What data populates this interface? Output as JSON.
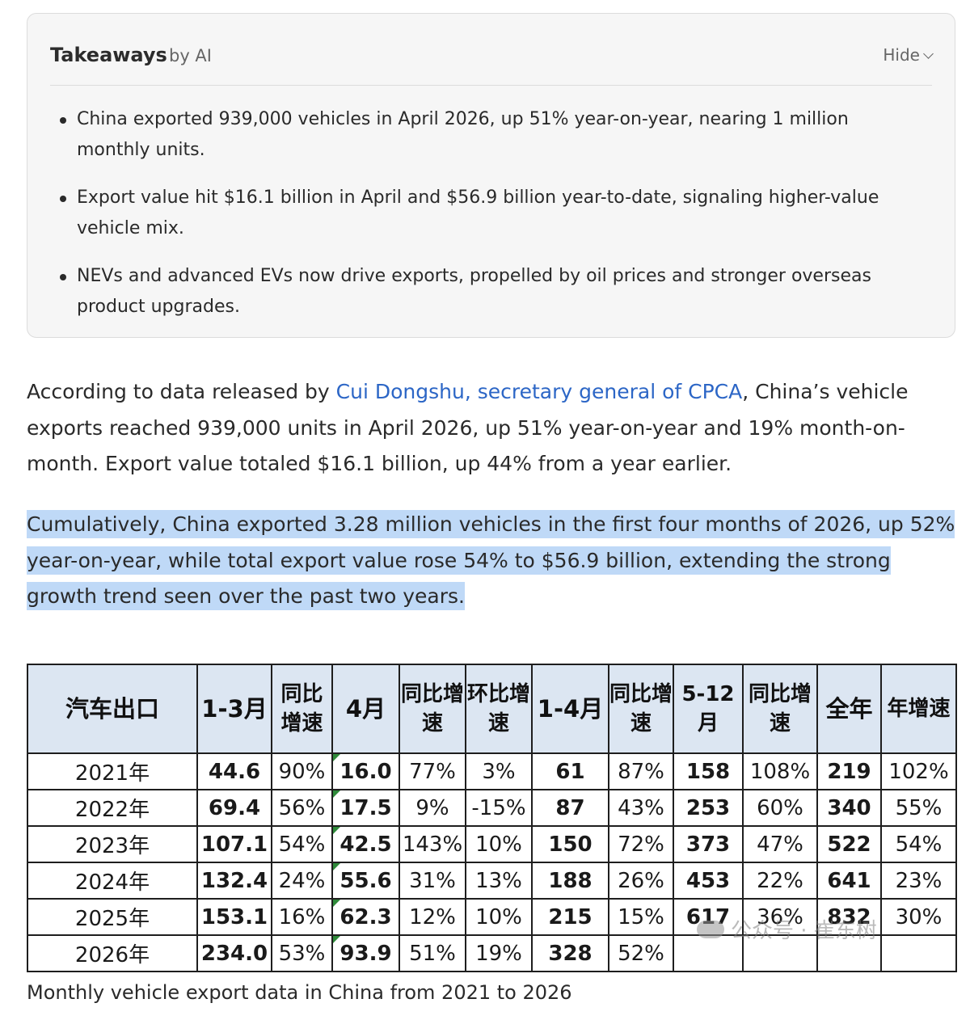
{
  "takeaways": {
    "title": "Takeaways",
    "by": "by AI",
    "hide_label": "Hide",
    "items": [
      "China exported 939,000 vehicles in April 2026, up 51% year-on-year, nearing 1 million monthly units.",
      "Export value hit $16.1 billion in April and $56.9 billion year-to-date, signaling higher-value vehicle mix.",
      "NEVs and advanced EVs now drive exports, propelled by oil prices and stronger overseas product upgrades."
    ]
  },
  "article": {
    "p1_prefix": "According to data released by ",
    "p1_link": "Cui Dongshu, secretary general of CPCA",
    "p1_suffix": ", China’s vehicle exports reached 939,000 units in April 2026, up 51% year-on-year and 19% month-on-month. Export value totaled $16.1 billion, up 44% from a year earlier.",
    "p2": "Cumulatively, China exported 3.28 million vehicles in the first four months of 2026, up 52% year-on-year, while total export value rose 54% to $56.9 billion, extending the strong growth trend seen over the past two years."
  },
  "table": {
    "headers": [
      "汽车出口",
      "1-3月",
      "同比增速",
      "4月",
      "同比增速",
      "环比增速",
      "1-4月",
      "同比增速",
      "5-12月",
      "同比增速",
      "全年",
      "年增速"
    ],
    "rows": [
      [
        "2021年",
        "44.6",
        "90%",
        "16.0",
        "77%",
        "3%",
        "61",
        "87%",
        "158",
        "108%",
        "219",
        "102%"
      ],
      [
        "2022年",
        "69.4",
        "56%",
        "17.5",
        "9%",
        "-15%",
        "87",
        "43%",
        "253",
        "60%",
        "340",
        "55%"
      ],
      [
        "2023年",
        "107.1",
        "54%",
        "42.5",
        "143%",
        "10%",
        "150",
        "72%",
        "373",
        "47%",
        "522",
        "54%"
      ],
      [
        "2024年",
        "132.4",
        "24%",
        "55.6",
        "31%",
        "13%",
        "188",
        "26%",
        "453",
        "22%",
        "641",
        "23%"
      ],
      [
        "2025年",
        "153.1",
        "16%",
        "62.3",
        "12%",
        "10%",
        "215",
        "15%",
        "617",
        "36%",
        "832",
        "30%"
      ],
      [
        "2026年",
        "234.0",
        "53%",
        "93.9",
        "51%",
        "19%",
        "328",
        "52%",
        "",
        "",
        "",
        ""
      ]
    ],
    "watermark": "公众号 · 崔东树"
  },
  "caption": "Monthly vehicle export data in China from 2021 to 2026"
}
